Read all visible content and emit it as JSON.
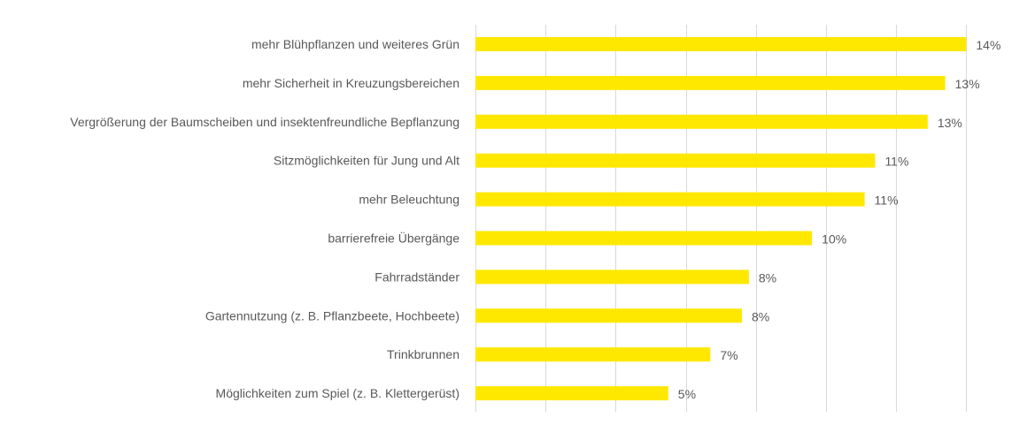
{
  "chart_data": {
    "type": "bar",
    "orientation": "horizontal",
    "categories": [
      "mehr Blühpflanzen und weiteres Grün",
      "mehr Sicherheit in Kreuzungsbereichen",
      "Vergrößerung der Baumscheiben und insektenfreundliche Bepflanzung",
      "Sitzmöglichkeiten für Jung und Alt",
      "mehr Beleuchtung",
      "barrierefreie Übergänge",
      "Fahrradständer",
      "Gartennutzung (z. B. Pflanzbeete, Hochbeete)",
      "Trinkbrunnen",
      "Möglichkeiten zum Spiel (z. B. Klettergerüst)"
    ],
    "values": [
      14.0,
      13.4,
      12.9,
      11.4,
      11.1,
      9.6,
      7.8,
      7.6,
      6.7,
      5.5
    ],
    "value_labels": [
      "14%",
      "13%",
      "13%",
      "11%",
      "11%",
      "10%",
      "8%",
      "8%",
      "7%",
      "5%"
    ],
    "xlim": [
      0,
      14
    ],
    "grid": true,
    "bar_color": "#FFE800",
    "grid_color": "#D9D9D9",
    "text_color": "#595959",
    "title": "",
    "xlabel": "",
    "ylabel": ""
  }
}
